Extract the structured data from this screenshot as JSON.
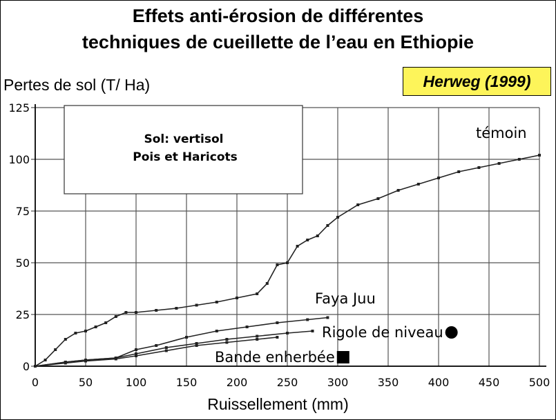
{
  "chart_data": {
    "type": "line",
    "title": "Effets anti-érosion de différentes",
    "subtitle": "techniques de cueillette de l’eau en Ethiopie",
    "source": "Herweg (1999)",
    "xlabel": "Ruissellement (mm)",
    "ylabel": "Pertes de sol (T/ Ha)",
    "xlim": [
      0,
      500
    ],
    "ylim": [
      0,
      125
    ],
    "xticks": [
      "0",
      "50",
      "100",
      "150",
      "200",
      "250",
      "300",
      "350",
      "400",
      "450",
      "500"
    ],
    "yticks": [
      "0",
      "25",
      "50",
      "75",
      "100",
      "125"
    ],
    "grid": true,
    "info_box": {
      "line1": "Sol: vertisol",
      "line2": "Pois et Haricots"
    },
    "series": [
      {
        "name": "témoin",
        "x": [
          0,
          10,
          20,
          30,
          40,
          50,
          60,
          70,
          80,
          90,
          100,
          120,
          140,
          160,
          180,
          200,
          220,
          230,
          240,
          250,
          260,
          270,
          280,
          290,
          300,
          320,
          340,
          360,
          380,
          400,
          420,
          440,
          460,
          480,
          500
        ],
        "y": [
          0,
          3,
          8,
          13,
          16,
          17,
          19,
          21,
          24,
          26,
          26,
          27,
          28,
          29.5,
          31,
          33,
          35,
          40,
          49,
          50,
          58,
          61,
          63,
          68,
          72,
          78,
          81,
          85,
          88,
          91,
          94,
          96,
          98,
          100,
          102
        ]
      },
      {
        "name": "Faya Juu",
        "x": [
          0,
          30,
          50,
          80,
          100,
          120,
          150,
          180,
          210,
          240,
          270,
          290
        ],
        "y": [
          0,
          2,
          3,
          4,
          8,
          10,
          14,
          17,
          19,
          21,
          22.5,
          23.5
        ]
      },
      {
        "name": "Rigole de niveau",
        "x": [
          0,
          30,
          50,
          80,
          100,
          130,
          160,
          190,
          220,
          250,
          275
        ],
        "y": [
          0,
          2,
          3,
          4,
          6,
          9,
          11,
          13,
          14.5,
          16,
          17
        ]
      },
      {
        "name": "Bande enherbée",
        "x": [
          0,
          30,
          50,
          80,
          100,
          130,
          160,
          190,
          220,
          240
        ],
        "y": [
          0,
          1.5,
          2.5,
          3.5,
          5,
          7.5,
          10,
          11.5,
          13,
          14
        ]
      }
    ],
    "colors": {
      "line": "#222222",
      "grid": "#555555",
      "source_bg": "#fdf45a"
    }
  }
}
